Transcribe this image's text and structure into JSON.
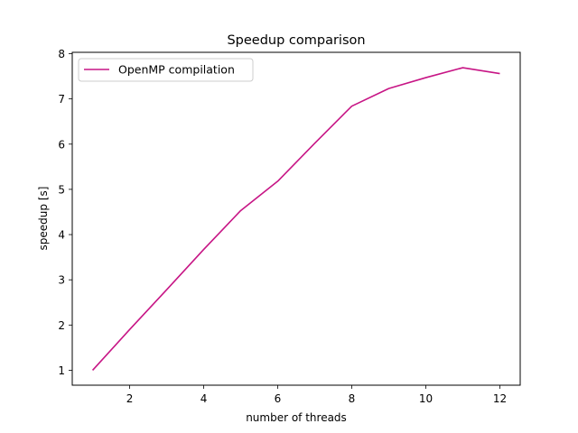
{
  "chart_data": {
    "type": "line",
    "title": "Speedup comparison",
    "xlabel": "number of threads",
    "ylabel": "speedup [s]",
    "xlim": [
      0.45,
      12.55
    ],
    "ylim": [
      0.67,
      8.03
    ],
    "xticks": [
      2,
      4,
      6,
      8,
      10,
      12
    ],
    "yticks": [
      1,
      2,
      3,
      4,
      5,
      6,
      7,
      8
    ],
    "grid": false,
    "legend_position": "top-left",
    "series": [
      {
        "name": "OpenMP compilation",
        "color": "#c71585",
        "x": [
          1,
          2,
          3,
          4,
          5,
          6,
          7,
          8,
          9,
          10,
          11,
          12
        ],
        "y": [
          1.0,
          1.9,
          2.78,
          3.67,
          4.53,
          5.18,
          6.02,
          6.84,
          7.23,
          7.47,
          7.69,
          7.56
        ]
      }
    ]
  }
}
